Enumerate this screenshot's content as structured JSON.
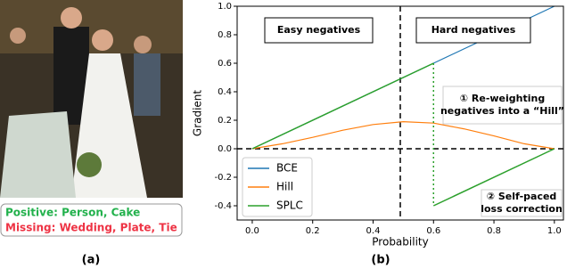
{
  "figure": {
    "positive": "Positive: Person, Cake",
    "missing": "Missing: Wedding, Plate, Tie",
    "label_a": "(a)",
    "label_b": "(b)"
  },
  "chart_data": {
    "type": "line",
    "xlabel": "Probability",
    "ylabel": "Gradient",
    "xlim": [
      -0.05,
      1.03
    ],
    "ylim": [
      -0.5,
      1.0
    ],
    "xticks": [
      {
        "value": 0,
        "label": "0.0"
      },
      0.2,
      0.4,
      0.6,
      0.8,
      {
        "value": 1,
        "label": "1.0"
      }
    ],
    "yticks": [
      -0.4,
      -0.2,
      {
        "value": 0,
        "label": "0.0"
      },
      0.2,
      0.4,
      0.6,
      0.8,
      {
        "value": 1,
        "label": "1.0"
      }
    ],
    "legend": "lower left",
    "vline": 0.49,
    "hline": 0,
    "series": [
      {
        "name": "BCE",
        "color": "#1f77b4",
        "x": [
          0,
          1
        ],
        "values": [
          0,
          1
        ]
      },
      {
        "name": "Hill",
        "color": "#ff7f0e",
        "x": [
          0,
          0.1,
          0.2,
          0.3,
          0.4,
          0.5,
          0.6,
          0.7,
          0.8,
          0.9,
          1.0
        ],
        "values": [
          0,
          0.035,
          0.08,
          0.13,
          0.17,
          0.19,
          0.18,
          0.14,
          0.09,
          0.035,
          0
        ]
      },
      {
        "name": "SPLC",
        "color": "#2ca02c",
        "x": [
          0,
          0.6,
          0.6,
          1.0
        ],
        "values": [
          0,
          0.6,
          -0.4,
          0
        ]
      }
    ],
    "annotations": [
      {
        "lines": [
          "Easy negatives"
        ]
      },
      {
        "lines": [
          "Hard negatives"
        ]
      },
      {
        "lines": [
          "① Re-weighting",
          "negatives into a “Hill”"
        ]
      },
      {
        "lines": [
          "② Self-paced",
          "loss correction"
        ]
      }
    ]
  }
}
